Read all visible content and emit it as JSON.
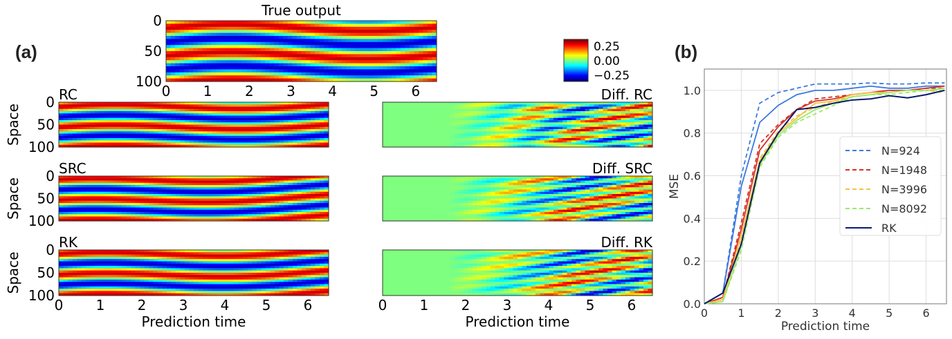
{
  "panel_a_label": "(a)",
  "panel_b_label": "(b)",
  "heatmaps": {
    "true_output": {
      "title": "True output",
      "yticks": [
        "0",
        "50",
        "100"
      ],
      "xticks": [
        "0",
        "1",
        "2",
        "3",
        "4",
        "5",
        "6"
      ]
    },
    "rc": {
      "title": "RC",
      "ylabel": "Space",
      "yticks": [
        "0",
        "50",
        "100"
      ]
    },
    "src": {
      "title": "SRC",
      "ylabel": "Space",
      "yticks": [
        "0",
        "50",
        "100"
      ]
    },
    "rk": {
      "title": "RK",
      "ylabel": "Space",
      "yticks": [
        "0",
        "50",
        "100"
      ],
      "xticks": [
        "0",
        "1",
        "2",
        "3",
        "4",
        "5",
        "6"
      ],
      "xlabel": "Prediction time"
    },
    "diff_rc": {
      "title": "Diff. RC"
    },
    "diff_src": {
      "title": "Diff. SRC"
    },
    "diff_rk": {
      "title": "Diff. RK",
      "xticks": [
        "0",
        "1",
        "2",
        "3",
        "4",
        "5",
        "6"
      ],
      "xlabel": "Prediction time"
    },
    "colormap": "jet",
    "colorbar_ticks": [
      "0.25",
      "0.00",
      "−0.25"
    ]
  },
  "chart_data": {
    "type": "line",
    "xlabel": "Prediction time",
    "ylabel": "MSE",
    "xlim": [
      0,
      6.55
    ],
    "ylim": [
      0,
      1.1
    ],
    "xticks": [
      "0",
      "1",
      "2",
      "3",
      "4",
      "5",
      "6"
    ],
    "yticks": [
      "0.0",
      "0.2",
      "0.4",
      "0.6",
      "0.8",
      "1.0"
    ],
    "grid": true,
    "legend_position": "center-right",
    "x": [
      0,
      0.5,
      1,
      1.5,
      2,
      2.5,
      3,
      3.5,
      4,
      4.5,
      5,
      5.5,
      6,
      6.5
    ],
    "series": [
      {
        "name": "N=924",
        "color": "#3a78e0",
        "style": "dashed",
        "values": [
          0,
          0.05,
          0.6,
          0.94,
          0.99,
          1.01,
          1.03,
          1.03,
          1.03,
          1.035,
          1.03,
          1.03,
          1.035,
          1.035
        ]
      },
      {
        "color": "#3a78e0",
        "style": "solid",
        "values": [
          0,
          0.05,
          0.55,
          0.85,
          0.93,
          0.98,
          1.0,
          1.0,
          1.01,
          1.02,
          1.01,
          1.01,
          1.02,
          1.02
        ]
      },
      {
        "name": "N=1948",
        "color": "#d62f25",
        "style": "dashed",
        "values": [
          0,
          0.03,
          0.38,
          0.75,
          0.84,
          0.91,
          0.96,
          0.97,
          0.98,
          0.99,
          1.0,
          1.0,
          1.01,
          1.01
        ]
      },
      {
        "color": "#d62f25",
        "style": "solid",
        "values": [
          0,
          0.03,
          0.35,
          0.72,
          0.83,
          0.91,
          0.95,
          0.96,
          0.98,
          0.99,
          1.0,
          1.0,
          1.01,
          1.02
        ]
      },
      {
        "name": "N=3996",
        "color": "#f5c242",
        "style": "dashed",
        "values": [
          0,
          0.02,
          0.3,
          0.68,
          0.81,
          0.88,
          0.92,
          0.95,
          0.97,
          0.98,
          0.99,
          1.0,
          1.0,
          0.99
        ]
      },
      {
        "color": "#f5c242",
        "style": "solid",
        "values": [
          0,
          0.02,
          0.32,
          0.67,
          0.8,
          0.87,
          0.94,
          0.95,
          0.98,
          0.99,
          0.99,
          1.0,
          1.0,
          1.01
        ]
      },
      {
        "name": "N=8092",
        "color": "#9ee86a",
        "style": "dashed",
        "values": [
          0,
          0.01,
          0.25,
          0.64,
          0.78,
          0.85,
          0.89,
          0.93,
          0.97,
          0.98,
          0.98,
          0.99,
          1.0,
          1.0
        ]
      },
      {
        "color": "#9ee86a",
        "style": "solid",
        "values": [
          0,
          0.01,
          0.27,
          0.65,
          0.79,
          0.86,
          0.91,
          0.94,
          0.97,
          0.98,
          0.99,
          1.0,
          1.0,
          1.01
        ]
      },
      {
        "name": "RK",
        "color": "#0b1a6e",
        "style": "solid",
        "values": [
          0,
          0.05,
          0.28,
          0.66,
          0.8,
          0.91,
          0.92,
          0.94,
          0.955,
          0.96,
          0.975,
          0.965,
          0.98,
          1.0
        ]
      }
    ]
  }
}
